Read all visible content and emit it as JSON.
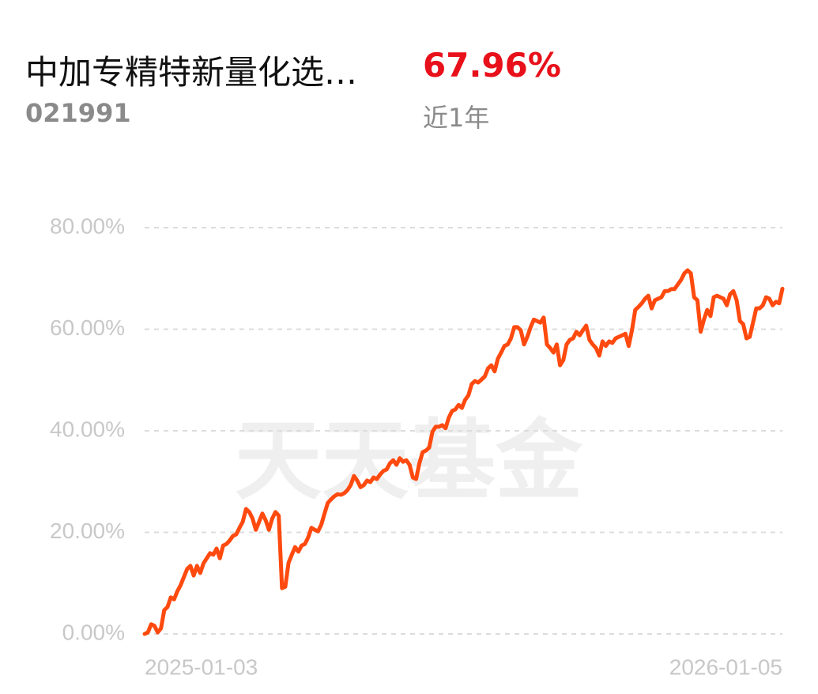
{
  "chart_data": {
    "type": "line",
    "title": "中加专精特新量化选…",
    "code": "021991",
    "return": "67.96%",
    "period": "近1年",
    "watermark": "天天基金",
    "ylim": [
      0,
      80
    ],
    "yticks": [
      {
        "value": 0,
        "label": "0.00%"
      },
      {
        "value": 20,
        "label": "20.00%"
      },
      {
        "value": 40,
        "label": "40.00%"
      },
      {
        "value": 60,
        "label": "60.00%"
      },
      {
        "value": 80,
        "label": "80.00%"
      }
    ],
    "grid": true,
    "color": "#ff4a0f",
    "categories": [
      "2025-01-03",
      null,
      null,
      null,
      null,
      null,
      null,
      null,
      null,
      null,
      null,
      null,
      null,
      null,
      null,
      null,
      null,
      null,
      null,
      null,
      null,
      null,
      null,
      null,
      null,
      null,
      null,
      null,
      null,
      null,
      null,
      null,
      null,
      null,
      null,
      null,
      null,
      null,
      null,
      null,
      null,
      null,
      null,
      null,
      null,
      null,
      null,
      null,
      null,
      null,
      null,
      null,
      null,
      null,
      null,
      null,
      null,
      null,
      null,
      null,
      null,
      null,
      null,
      null,
      null,
      null,
      null,
      null,
      null,
      null,
      null,
      null,
      null,
      null,
      null,
      null,
      null,
      null,
      null,
      null,
      null,
      null,
      null,
      null,
      null,
      null,
      null,
      null,
      null,
      null,
      null,
      null,
      null,
      null,
      null,
      null,
      null,
      null,
      null,
      null,
      null,
      null,
      null,
      null,
      null,
      null,
      null,
      null,
      null,
      null,
      null,
      null,
      null,
      null,
      null,
      null,
      null,
      null,
      null,
      null,
      null,
      null,
      null,
      null,
      null,
      null,
      null,
      null,
      null,
      null,
      null,
      null,
      null,
      null,
      null,
      null,
      null,
      null,
      null,
      null,
      null,
      null,
      null,
      null,
      null,
      null,
      null,
      null,
      null,
      null,
      null,
      null,
      null,
      null,
      null,
      null,
      null,
      null,
      null,
      null,
      null,
      null,
      null,
      null,
      null,
      null,
      null,
      null,
      null,
      null,
      null,
      null,
      null,
      null,
      null,
      null,
      null,
      null,
      null,
      null,
      null,
      null,
      null,
      null,
      null,
      null,
      null,
      null,
      null,
      null,
      null,
      null,
      null,
      null,
      null,
      "2026-01-05"
    ],
    "values": [
      0,
      0.3,
      1.9,
      1.6,
      0.3,
      1.1,
      4.7,
      5.3,
      7.2,
      6.8,
      8.4,
      9.6,
      11.2,
      12.8,
      13.4,
      11.5,
      13.4,
      12.0,
      13.9,
      14.9,
      15.9,
      15.6,
      16.8,
      14.9,
      17.4,
      17.7,
      18.4,
      19.3,
      19.6,
      20.9,
      22.1,
      24.6,
      24.0,
      22.7,
      20.5,
      22.1,
      23.7,
      22.4,
      20.5,
      22.7,
      24.0,
      23.3,
      9.0,
      9.3,
      14.0,
      15.6,
      17.1,
      16.2,
      17.4,
      17.7,
      19.0,
      20.9,
      20.5,
      20.2,
      21.5,
      23.7,
      25.8,
      26.5,
      27.1,
      27.5,
      27.4,
      27.7,
      28.3,
      29.3,
      31.1,
      30.2,
      28.9,
      29.3,
      30.2,
      29.9,
      30.8,
      30.5,
      31.4,
      32.1,
      32.4,
      33.6,
      34.2,
      33.3,
      34.6,
      33.9,
      34.2,
      33.3,
      30.8,
      30.5,
      33.6,
      35.8,
      36.1,
      36.7,
      39.8,
      40.8,
      40.8,
      41.1,
      40.5,
      42.6,
      43.9,
      44.2,
      45.1,
      44.5,
      46.1,
      47.0,
      49.2,
      49.8,
      49.5,
      50.1,
      50.7,
      52.3,
      52.9,
      51.7,
      54.2,
      55.4,
      56.7,
      57.0,
      58.2,
      60.4,
      60.4,
      59.8,
      57.0,
      58.5,
      60.4,
      61.9,
      61.6,
      61.3,
      62.3,
      57.0,
      56.3,
      55.4,
      57.0,
      52.9,
      53.9,
      57.0,
      57.9,
      58.2,
      59.5,
      58.8,
      59.8,
      60.7,
      57.9,
      57.0,
      56.3,
      54.8,
      57.6,
      56.7,
      57.6,
      57.3,
      58.2,
      58.5,
      58.8,
      59.1,
      56.7,
      59.8,
      63.8,
      64.4,
      65.1,
      66.0,
      66.6,
      64.1,
      65.7,
      66.0,
      66.3,
      67.5,
      67.5,
      67.9,
      67.9,
      68.8,
      69.7,
      71.0,
      71.6,
      71.0,
      66.3,
      65.7,
      59.5,
      61.9,
      63.8,
      62.6,
      66.3,
      66.6,
      66.3,
      66.0,
      64.7,
      66.9,
      67.5,
      65.7,
      61.6,
      61.0,
      58.2,
      58.5,
      61.3,
      64.1,
      64.1,
      64.7,
      66.3,
      66.0,
      64.7,
      65.4,
      65.1,
      67.96
    ]
  }
}
